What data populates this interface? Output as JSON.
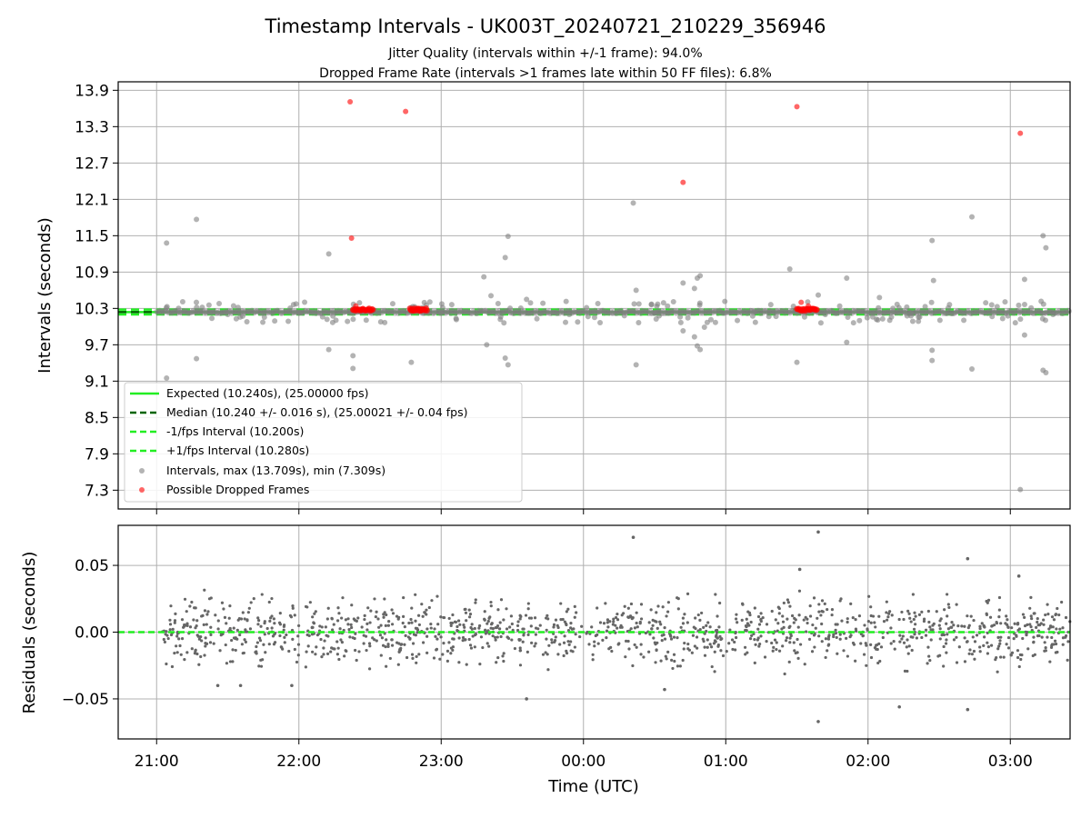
{
  "title": "Timestamp Intervals - UK003T_20240721_210229_356946",
  "subtitle_line1": "Jitter Quality (intervals within +/-1 frame): 94.0%",
  "subtitle_line2": "Dropped Frame Rate (intervals >1 frames late within 50 FF files): 6.8%",
  "colors": {
    "expected": "#22ee22",
    "median": "#006400",
    "interval_points": "#808080",
    "dropped_points": "#ff0000",
    "grid": "#b0b0b0"
  },
  "chart_data": [
    {
      "type": "scatter",
      "panel": "intervals",
      "ylabel": "Intervals (seconds)",
      "yticks": [
        "13.9",
        "13.3",
        "12.7",
        "12.1",
        "11.5",
        "10.9",
        "10.3",
        "9.7",
        "9.1",
        "8.5",
        "7.9",
        "7.3"
      ],
      "ylim": [
        6.99,
        14.04
      ],
      "xlim_hours": [
        20.73,
        27.42
      ],
      "xticks": [
        "21:00",
        "22:00",
        "23:00",
        "00:00",
        "01:00",
        "02:00",
        "03:00"
      ],
      "grid": true,
      "legend_position": "lower-left",
      "lines": [
        {
          "name": "Expected (10.240s), (25.00000 fps)",
          "y": 10.24,
          "style": "solid"
        },
        {
          "name": "Median (10.240 +/- 0.016 s), (25.00021 +/- 0.04 fps)",
          "y": 10.24,
          "style": "dashed"
        },
        {
          "name": "-1/fps Interval (10.200s)",
          "y": 10.2,
          "style": "dashed"
        },
        {
          "name": "+1/fps Interval (10.280s)",
          "y": 10.28,
          "style": "dashed"
        }
      ],
      "series": [
        {
          "name": "Intervals, max (13.709s), min (7.309s)",
          "points": [
            [
              21.07,
              11.38
            ],
            [
              21.07,
              9.15
            ],
            [
              21.28,
              11.77
            ],
            [
              21.28,
              9.47
            ],
            [
              22.21,
              11.2
            ],
            [
              22.21,
              9.62
            ],
            [
              22.38,
              10.29
            ],
            [
              22.38,
              9.52
            ],
            [
              22.38,
              9.31
            ],
            [
              22.79,
              9.41
            ],
            [
              22.8,
              10.33
            ],
            [
              23.3,
              10.82
            ],
            [
              23.35,
              10.51
            ],
            [
              23.4,
              10.38
            ],
            [
              23.45,
              11.14
            ],
            [
              23.47,
              11.49
            ],
            [
              23.45,
              9.48
            ],
            [
              23.47,
              9.37
            ],
            [
              23.32,
              9.7
            ],
            [
              23.6,
              10.45
            ],
            [
              24.35,
              12.04
            ],
            [
              24.37,
              10.6
            ],
            [
              24.37,
              9.37
            ],
            [
              24.7,
              10.72
            ],
            [
              24.7,
              9.93
            ],
            [
              24.78,
              10.63
            ],
            [
              24.8,
              10.8
            ],
            [
              24.82,
              10.84
            ],
            [
              24.85,
              9.99
            ],
            [
              24.82,
              9.62
            ],
            [
              24.8,
              9.68
            ],
            [
              24.78,
              9.83
            ],
            [
              25.45,
              10.95
            ],
            [
              25.5,
              9.41
            ],
            [
              25.65,
              10.52
            ],
            [
              25.85,
              10.8
            ],
            [
              25.85,
              9.74
            ],
            [
              26.08,
              10.48
            ],
            [
              26.45,
              11.42
            ],
            [
              26.46,
              10.76
            ],
            [
              26.45,
              9.61
            ],
            [
              26.45,
              9.44
            ],
            [
              26.73,
              11.81
            ],
            [
              26.73,
              9.3
            ],
            [
              27.1,
              10.78
            ],
            [
              27.1,
              9.86
            ],
            [
              27.23,
              11.5
            ],
            [
              27.25,
              11.3
            ],
            [
              27.23,
              9.28
            ],
            [
              27.25,
              9.24
            ],
            [
              27.07,
              7.31
            ],
            [
              21.5,
              10.2
            ],
            [
              22.0,
              10.22
            ],
            [
              22.5,
              10.25
            ],
            [
              23.0,
              10.22
            ],
            [
              23.9,
              10.2
            ],
            [
              24.5,
              10.22
            ],
            [
              25.2,
              10.25
            ],
            [
              25.7,
              10.2
            ],
            [
              26.3,
              10.22
            ],
            [
              27.3,
              10.2
            ]
          ]
        },
        {
          "name": "Possible Dropped Frames",
          "points": [
            [
              22.36,
              13.71
            ],
            [
              22.75,
              13.55
            ],
            [
              22.37,
              11.46
            ],
            [
              24.7,
              12.38
            ],
            [
              25.5,
              13.63
            ],
            [
              27.07,
              13.19
            ],
            [
              22.4,
              10.34
            ],
            [
              22.45,
              10.3
            ],
            [
              22.5,
              10.28
            ],
            [
              22.84,
              10.3
            ],
            [
              22.88,
              10.28
            ],
            [
              25.53,
              10.4
            ],
            [
              25.58,
              10.34
            ],
            [
              25.6,
              10.3
            ],
            [
              25.62,
              10.28
            ]
          ]
        }
      ]
    },
    {
      "type": "scatter",
      "panel": "residuals",
      "ylabel": "Residuals (seconds)",
      "xlabel": "Time (UTC)",
      "yticks": [
        "0.05",
        "0.00",
        "−0.05"
      ],
      "ylim": [
        -0.08,
        0.08
      ],
      "xlim_hours": [
        20.73,
        27.42
      ],
      "xticks": [
        "21:00",
        "22:00",
        "23:00",
        "00:00",
        "01:00",
        "02:00",
        "03:00"
      ],
      "grid": true,
      "series": [
        {
          "name": "residuals",
          "outliers": [
            [
              24.35,
              0.071
            ],
            [
              25.65,
              0.075
            ],
            [
              25.52,
              0.047
            ],
            [
              26.7,
              0.055
            ],
            [
              27.06,
              0.042
            ],
            [
              23.6,
              -0.05
            ],
            [
              25.65,
              -0.067
            ],
            [
              26.7,
              -0.058
            ],
            [
              26.22,
              -0.056
            ],
            [
              24.57,
              -0.043
            ],
            [
              21.95,
              -0.04
            ],
            [
              21.59,
              -0.04
            ],
            [
              21.43,
              -0.04
            ]
          ],
          "cloud": {
            "x_range": [
              21.04,
              27.42
            ],
            "y_range": [
              -0.035,
              0.035
            ],
            "count": 1300
          }
        }
      ]
    }
  ]
}
